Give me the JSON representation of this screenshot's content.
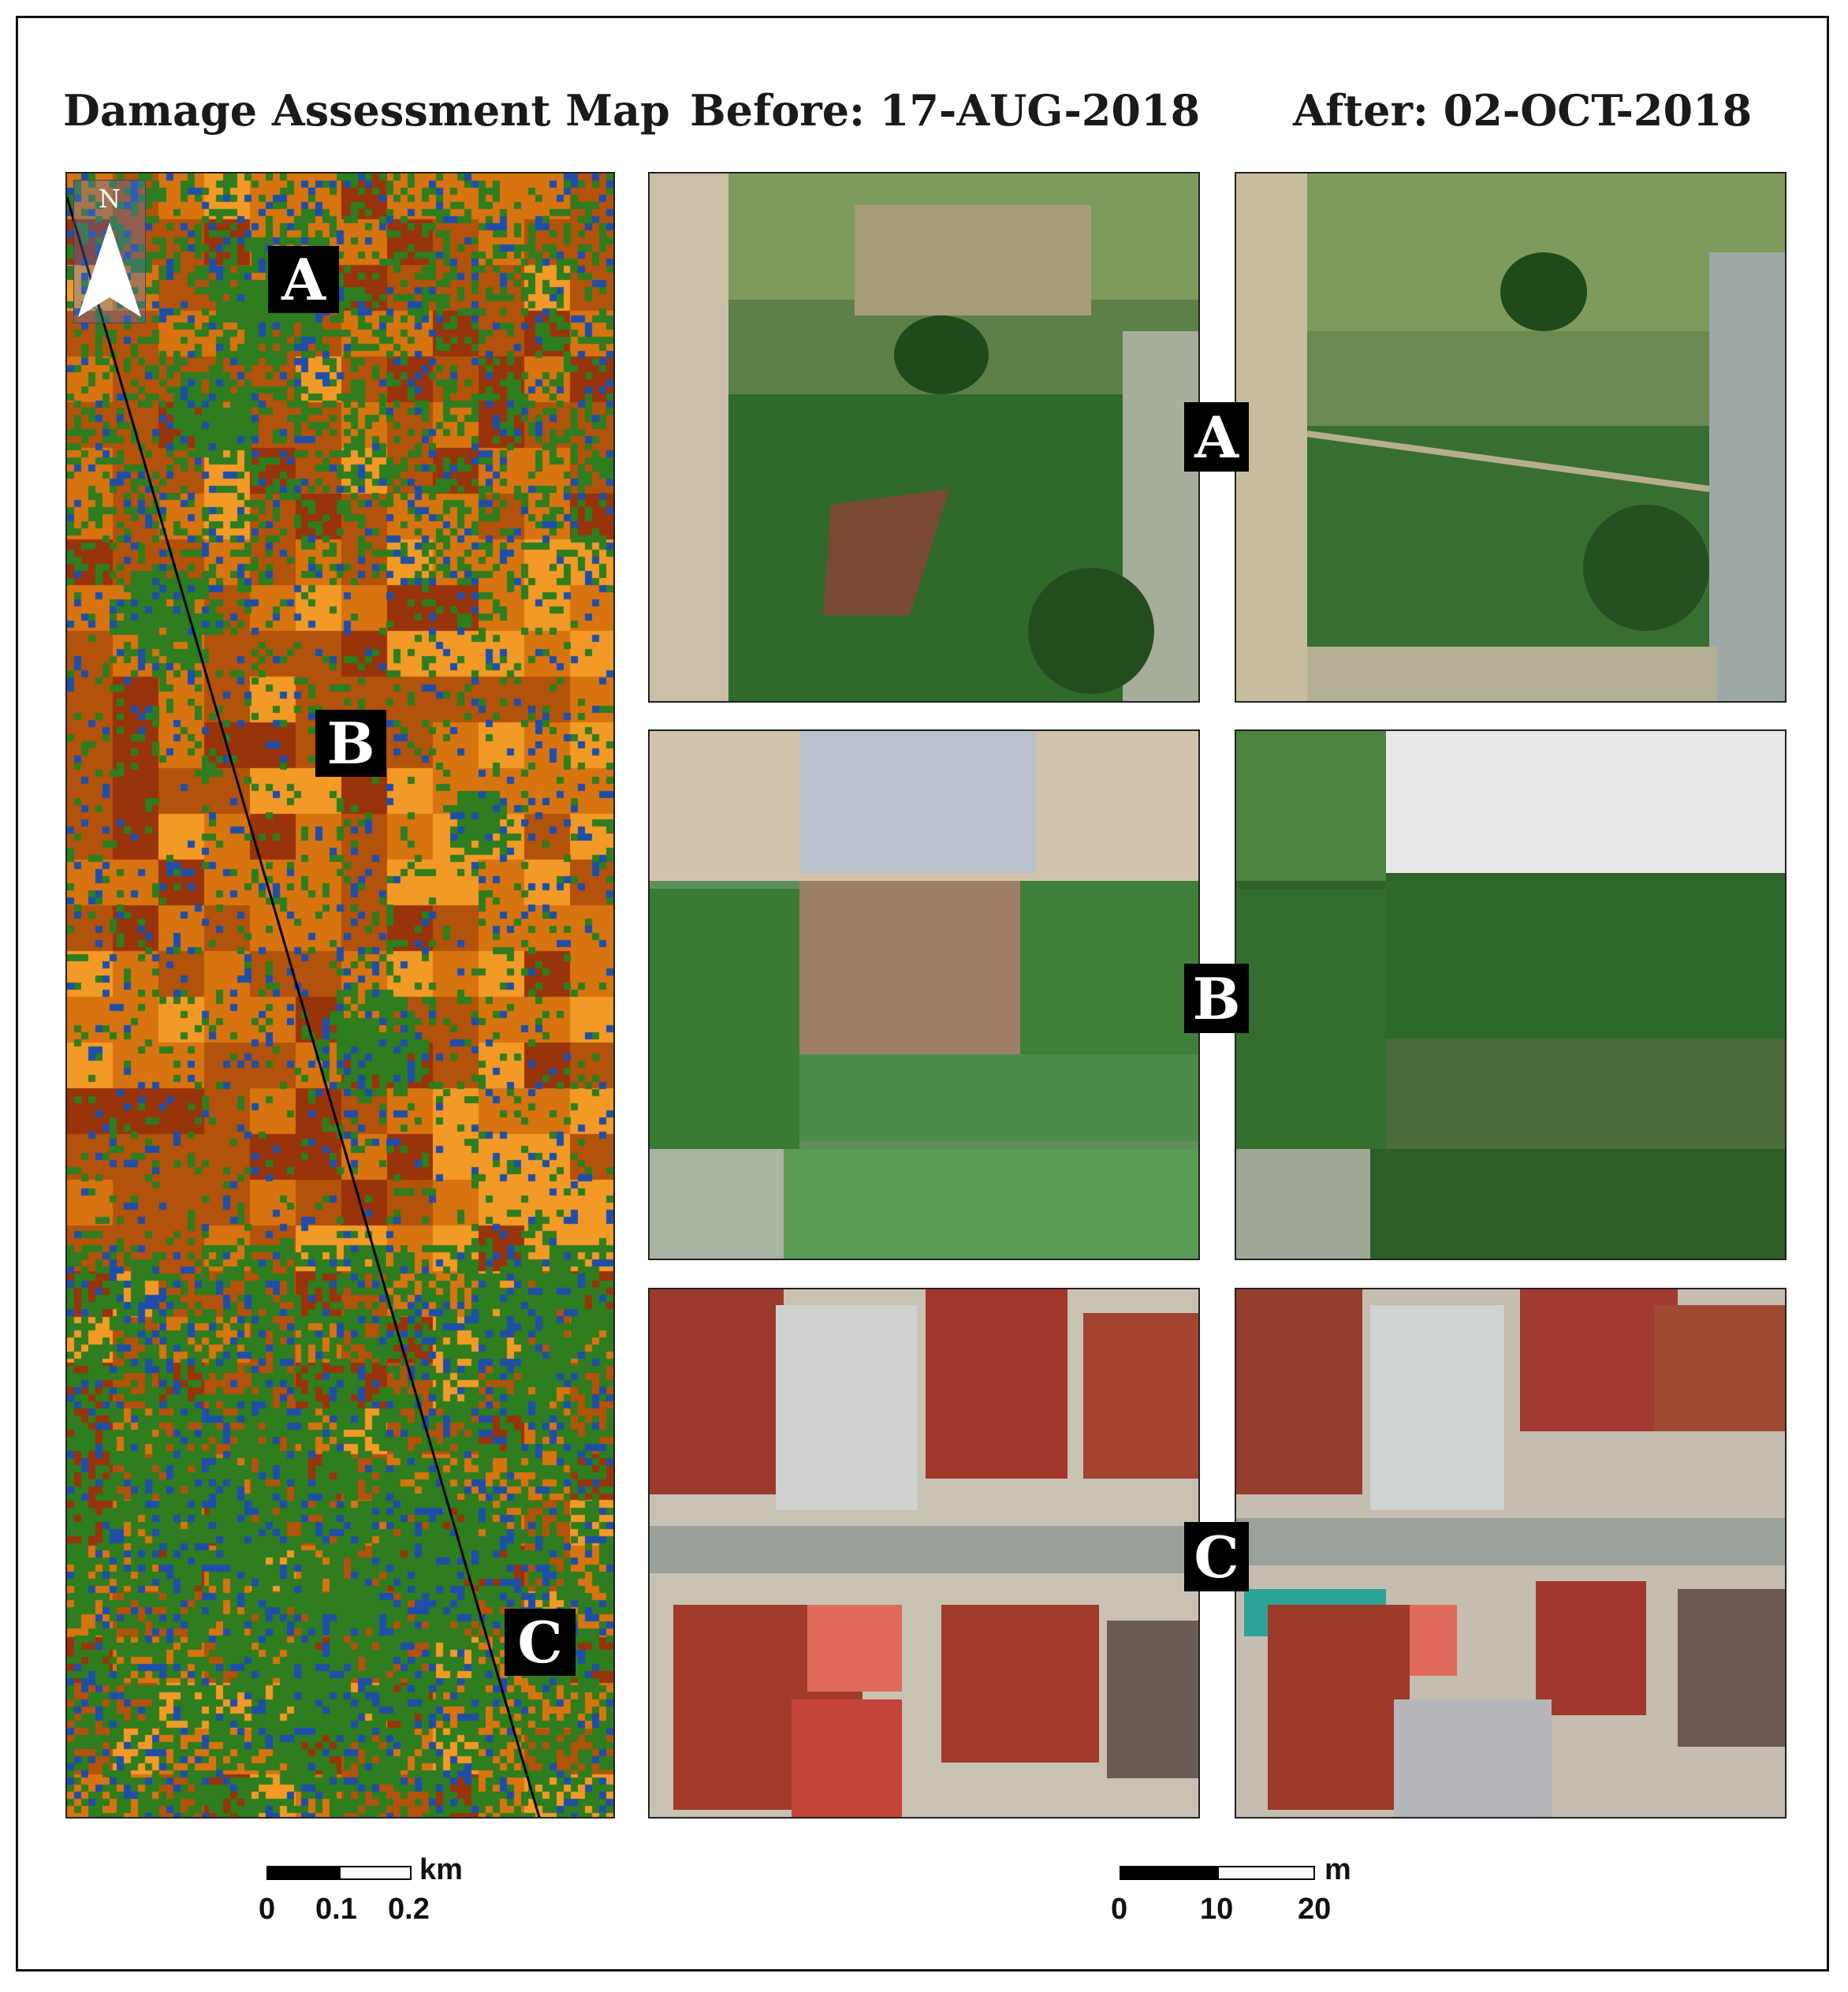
{
  "headings": {
    "map": "Damage Assessment Map",
    "before": "Before: 17-AUG-2018",
    "after": "After: 02-OCT-2018"
  },
  "site_labels": [
    "A",
    "B",
    "C"
  ],
  "north_arrow": {
    "letter": "N",
    "icon": "north-arrow-icon"
  },
  "map_colors": {
    "orange_dark": "#b3520b",
    "orange": "#d87410",
    "orange_light": "#f39a26",
    "red_brown": "#99330a",
    "green": "#2e7d1f",
    "blue": "#1e4fa8"
  },
  "scalebar_map": {
    "unit": "km",
    "ticks": [
      "0",
      "0.1",
      "0.2"
    ]
  },
  "scalebar_images": {
    "unit": "m",
    "ticks": [
      "0",
      "10",
      "20"
    ]
  }
}
